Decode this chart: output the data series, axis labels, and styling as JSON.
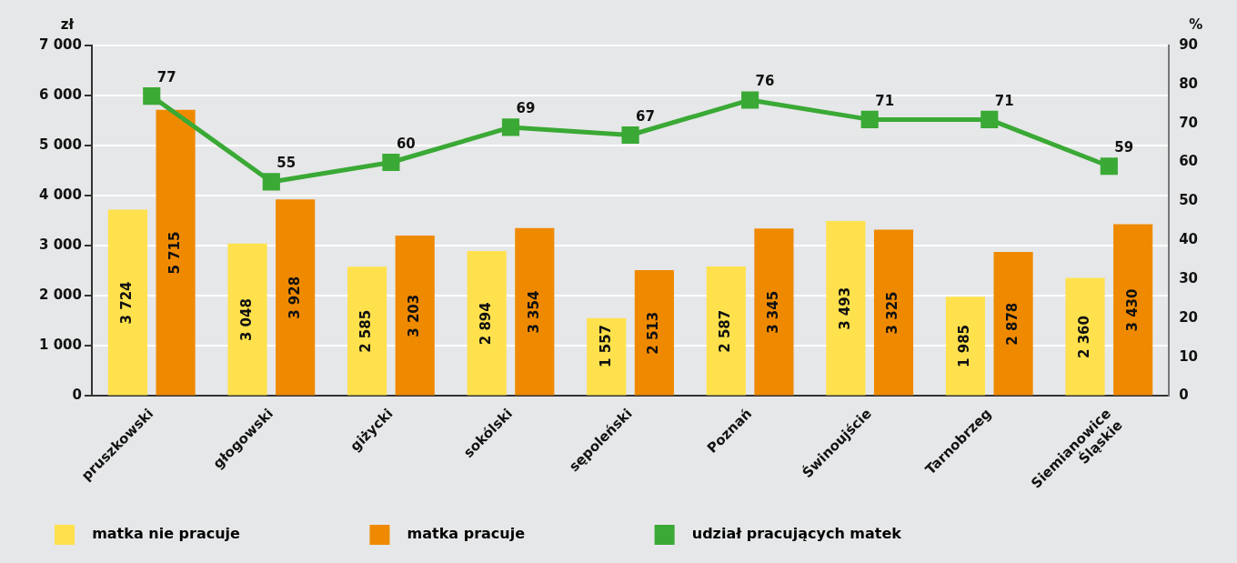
{
  "chart_data": {
    "type": "bar",
    "ylabel": "zł",
    "y2label": "%",
    "categories": [
      "pruszkowski",
      "głogowski",
      "giżycki",
      "sokólski",
      "sępoleński",
      "Poznań",
      "Świnoujście",
      "Tarnobrzeg",
      "Siemianowice Śląskie"
    ],
    "series": [
      {
        "name": "matka nie pracuje",
        "color": "#ffe14d",
        "values": [
          3724,
          3048,
          2585,
          2894,
          1557,
          2587,
          3493,
          1985,
          2360
        ],
        "value_labels": [
          "3 724",
          "3 048",
          "2 585",
          "2 894",
          "1 557",
          "2 587",
          "3 493",
          "1 985",
          "2 360"
        ]
      },
      {
        "name": "matka pracuje",
        "color": "#ef8a00",
        "values": [
          5715,
          3928,
          3203,
          3354,
          2513,
          3345,
          3325,
          2878,
          3430
        ],
        "value_labels": [
          "5 715",
          "3 928",
          "3 203",
          "3 354",
          "2 513",
          "3 345",
          "3 325",
          "2 878",
          "3 430"
        ]
      },
      {
        "name": "udział pracujących matek",
        "type": "line",
        "axis": "y2",
        "color": "#3aa935",
        "marker": "square",
        "values": [
          77,
          55,
          60,
          69,
          67,
          76,
          71,
          71,
          59
        ],
        "value_labels": [
          "77",
          "55",
          "60",
          "69",
          "67",
          "76",
          "71",
          "71",
          "59"
        ]
      }
    ],
    "ylim": [
      0,
      7000
    ],
    "yticks": [
      0,
      {
        "value": 1000,
        "label": "1 000"
      },
      {
        "value": 2000,
        "label": "2 000"
      },
      {
        "value": 3000,
        "label": "3 000"
      },
      {
        "value": 4000,
        "label": "4 000"
      },
      {
        "value": 5000,
        "label": "5 000"
      },
      {
        "value": 6000,
        "label": "6 000"
      },
      {
        "value": 7000,
        "label": "7 000"
      }
    ],
    "y2lim": [
      0,
      90
    ],
    "y2ticks": [
      0,
      10,
      20,
      30,
      40,
      50,
      60,
      70,
      80,
      90
    ],
    "grid": "y",
    "legend": "bottom"
  }
}
